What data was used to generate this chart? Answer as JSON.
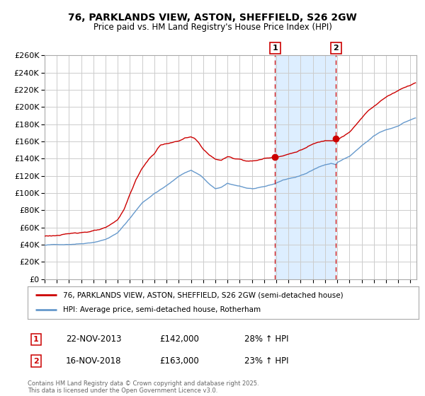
{
  "title_line1": "76, PARKLANDS VIEW, ASTON, SHEFFIELD, S26 2GW",
  "title_line2": "Price paid vs. HM Land Registry's House Price Index (HPI)",
  "legend_line1": "76, PARKLANDS VIEW, ASTON, SHEFFIELD, S26 2GW (semi-detached house)",
  "legend_line2": "HPI: Average price, semi-detached house, Rotherham",
  "sale1_label": "1",
  "sale1_date": "22-NOV-2013",
  "sale1_price": "£142,000",
  "sale1_hpi": "28% ↑ HPI",
  "sale2_label": "2",
  "sale2_date": "16-NOV-2018",
  "sale2_price": "£163,000",
  "sale2_hpi": "23% ↑ HPI",
  "copyright": "Contains HM Land Registry data © Crown copyright and database right 2025.\nThis data is licensed under the Open Government Licence v3.0.",
  "sale1_year": 2013.9,
  "sale2_year": 2018.9,
  "sale1_value": 142000,
  "sale2_value": 163000,
  "red_color": "#cc0000",
  "blue_color": "#6699cc",
  "shade_color": "#ddeeff",
  "dashed_color": "#cc0000",
  "background_color": "#ffffff",
  "grid_color": "#cccccc",
  "ylim_max": 260000,
  "ylim_min": 0,
  "xmin": 1995,
  "xmax": 2025.5
}
